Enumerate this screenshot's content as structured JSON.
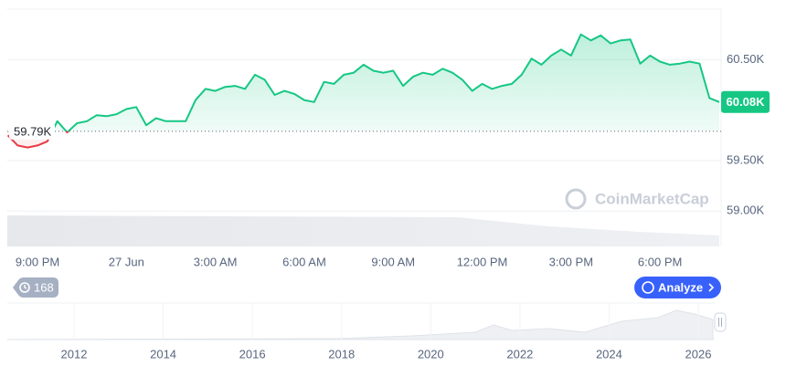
{
  "chart_data": {
    "type": "line",
    "categories": [
      null,
      null,
      null,
      "9:00 PM",
      null,
      null,
      null,
      null,
      null,
      null,
      null,
      null,
      "27 Jun",
      null,
      null,
      null,
      null,
      null,
      null,
      null,
      null,
      "3:00 AM",
      null,
      null,
      null,
      null,
      null,
      null,
      null,
      null,
      "6:00 AM",
      null,
      null,
      null,
      null,
      null,
      null,
      null,
      null,
      "9:00 AM",
      null,
      null,
      null,
      null,
      null,
      null,
      null,
      null,
      "12:00 PM",
      null,
      null,
      null,
      null,
      null,
      null,
      null,
      null,
      "3:00 PM",
      null,
      null,
      null,
      null,
      null,
      null,
      null,
      null,
      "6:00 PM",
      null,
      null,
      null,
      null,
      null,
      null
    ],
    "series": [
      {
        "color": "#16c784",
        "negative_color": "#ea3943",
        "values": [
          59750,
          59650,
          59630,
          59650,
          59690,
          59890,
          59780,
          59870,
          59890,
          59950,
          59940,
          59960,
          60010,
          60030,
          59850,
          59920,
          59890,
          59890,
          59890,
          60100,
          60210,
          60190,
          60230,
          60240,
          60210,
          60350,
          60300,
          60150,
          60190,
          60160,
          60100,
          60080,
          60280,
          60260,
          60350,
          60370,
          60450,
          60390,
          60370,
          60390,
          60240,
          60330,
          60370,
          60350,
          60410,
          60370,
          60300,
          60190,
          60260,
          60210,
          60240,
          60260,
          60350,
          60510,
          60450,
          60540,
          60600,
          60540,
          60750,
          60690,
          60740,
          60660,
          60690,
          60700,
          60460,
          60540,
          60480,
          60450,
          60460,
          60480,
          60460,
          60120,
          60080
        ]
      }
    ],
    "ylim": [
      58650,
      61000
    ],
    "yticks": [
      {
        "value": 59000,
        "label": "59.00K"
      },
      {
        "value": 59500,
        "label": "59.50K"
      },
      {
        "value": 60500,
        "label": "60.50K"
      }
    ],
    "grid": true,
    "baseline": {
      "value": 59790,
      "label": "59.79K"
    },
    "last_price": {
      "value": 60080,
      "label": "60.08K"
    }
  },
  "ui": {
    "history_badge": "168",
    "analyze_button": "Analyze",
    "watermark": "CoinMarketCap"
  },
  "navigator": {
    "labels": [
      "2012",
      "2014",
      "2016",
      "2018",
      "2020",
      "2022",
      "2024",
      "2026"
    ]
  }
}
